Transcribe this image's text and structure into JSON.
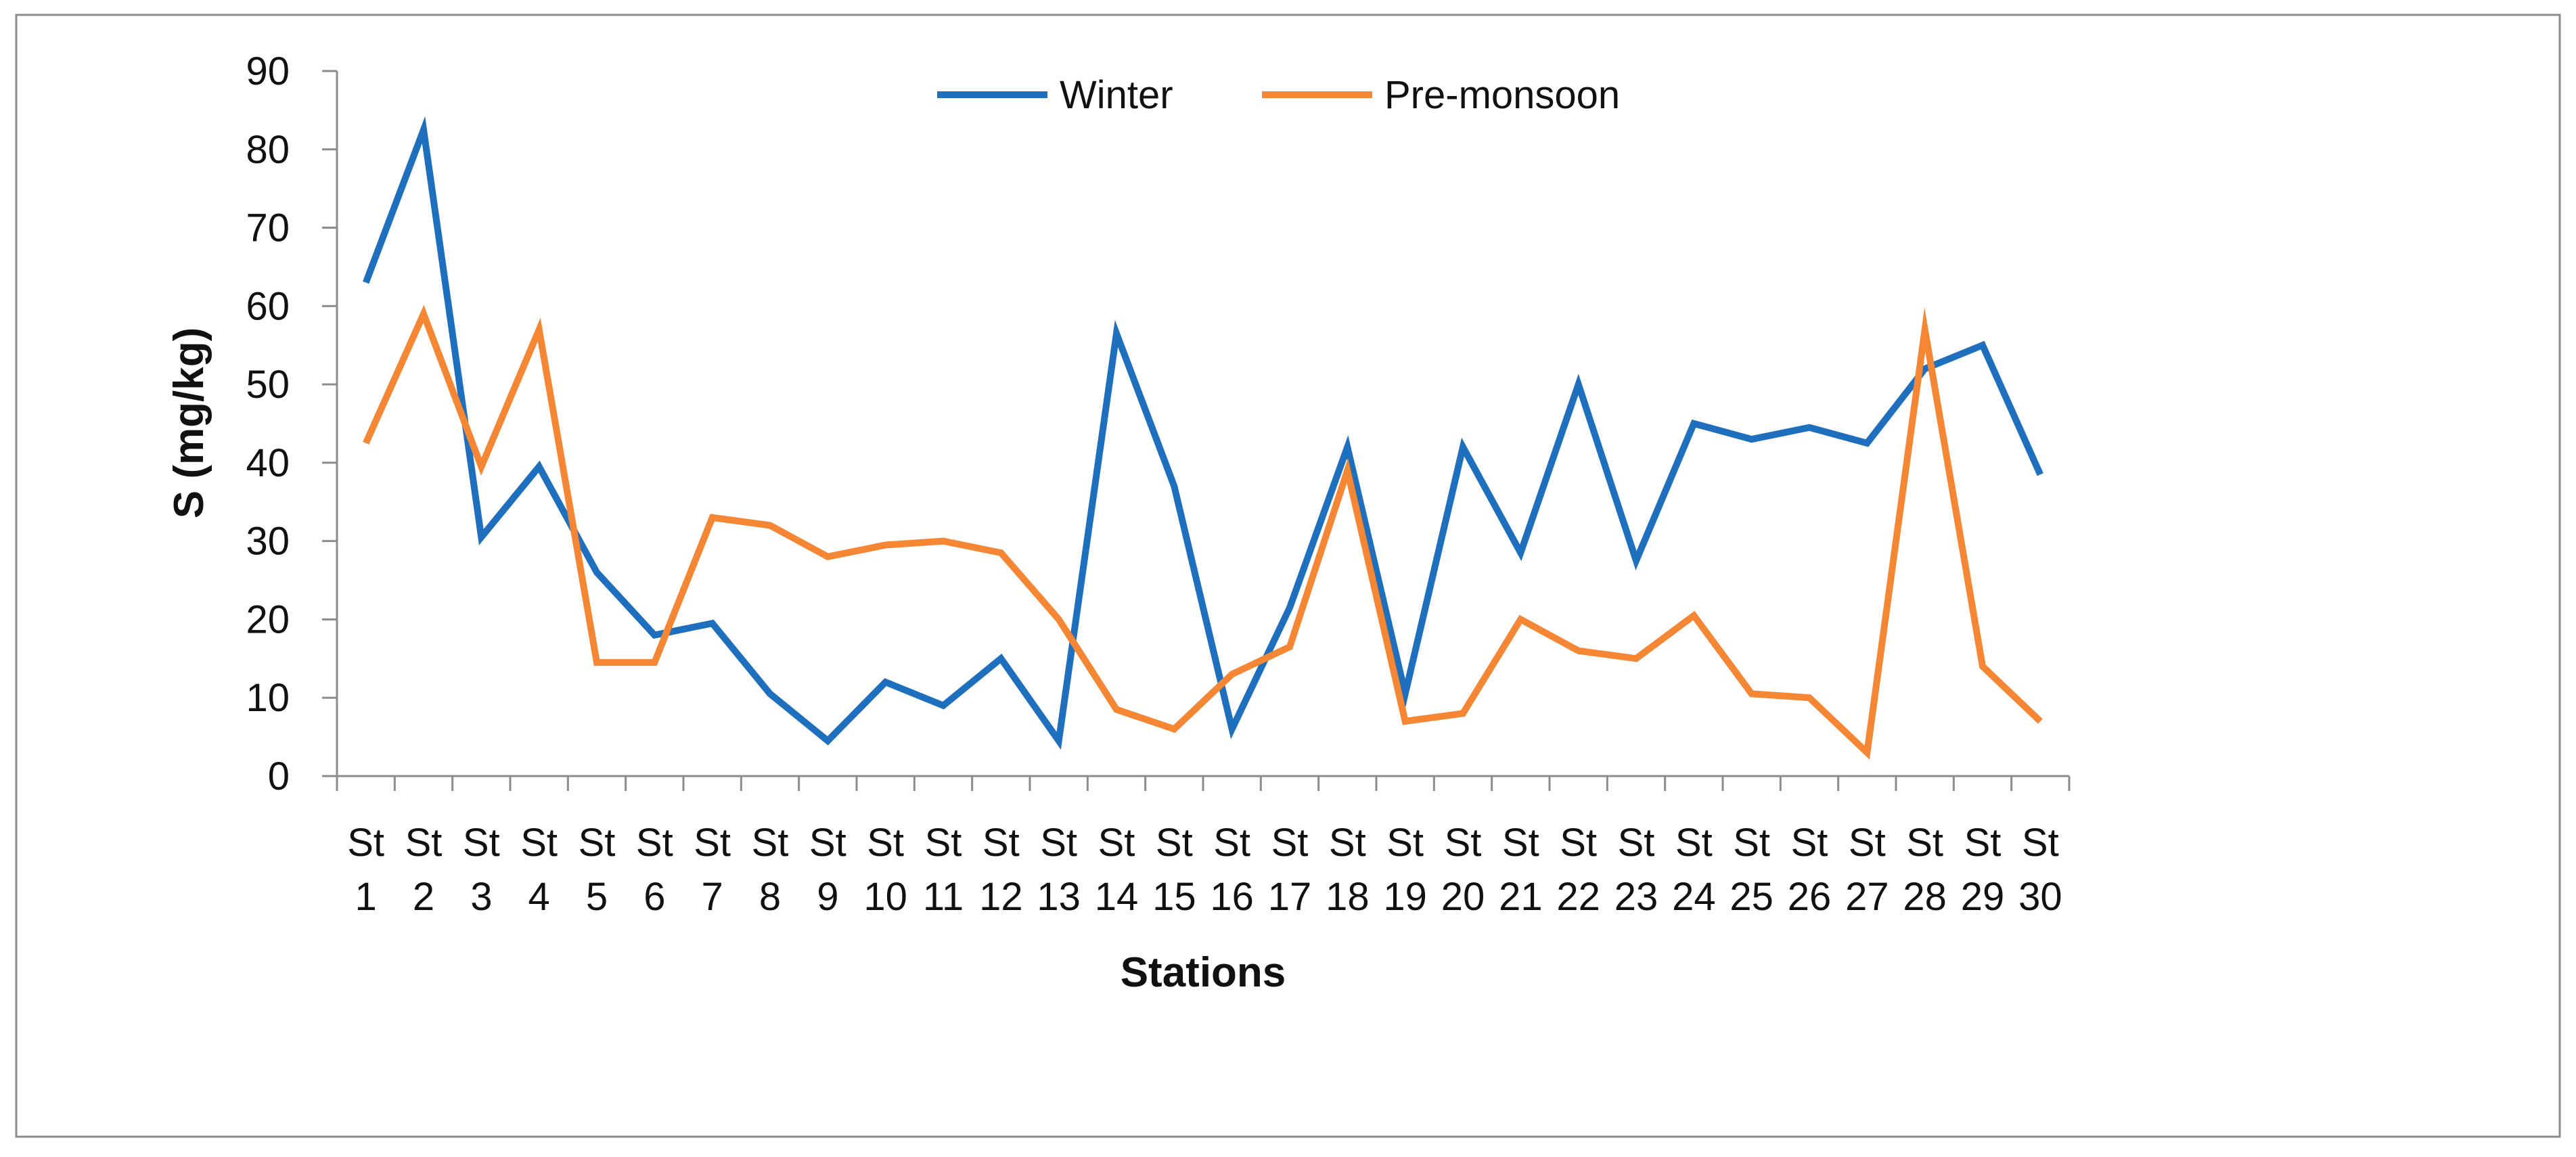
{
  "chart_data": {
    "type": "line",
    "title": "",
    "xlabel": "Stations",
    "ylabel": "S (mg/kg)",
    "ylim": [
      0,
      90
    ],
    "yticks": [
      0,
      10,
      20,
      30,
      40,
      50,
      60,
      70,
      80,
      90
    ],
    "grid": false,
    "legend_position": "top-center",
    "categories": [
      "St 1",
      "St 2",
      "St 3",
      "St 4",
      "St 5",
      "St 6",
      "St 7",
      "St 8",
      "St 9",
      "St 10",
      "St 11",
      "St 12",
      "St 13",
      "St 14",
      "St 15",
      "St 16",
      "St 17",
      "St 18",
      "St 19",
      "St 20",
      "St 21",
      "St 22",
      "St 23",
      "St 24",
      "St 25",
      "St 26",
      "St 27",
      "St 28",
      "St 29",
      "St 30"
    ],
    "series": [
      {
        "name": "Winter",
        "color": "#1f6fbf",
        "values": [
          63,
          82.5,
          30.5,
          39.5,
          26,
          18,
          19.5,
          10.5,
          4.5,
          12,
          9,
          15,
          4.5,
          56.5,
          37,
          6,
          21.5,
          42,
          10.5,
          42,
          28.5,
          50,
          27.5,
          45,
          43,
          44.5,
          42.5,
          52,
          55,
          38.5
        ]
      },
      {
        "name": "Pre-monsoon",
        "color": "#f58634",
        "values": [
          42.5,
          59,
          39.5,
          57,
          14.5,
          14.5,
          33,
          32,
          28,
          29.5,
          30,
          28.5,
          20,
          8.5,
          6,
          13,
          16.5,
          39,
          7,
          8,
          20,
          16,
          15,
          20.5,
          10.5,
          10,
          3,
          57,
          14,
          7
        ]
      }
    ]
  }
}
